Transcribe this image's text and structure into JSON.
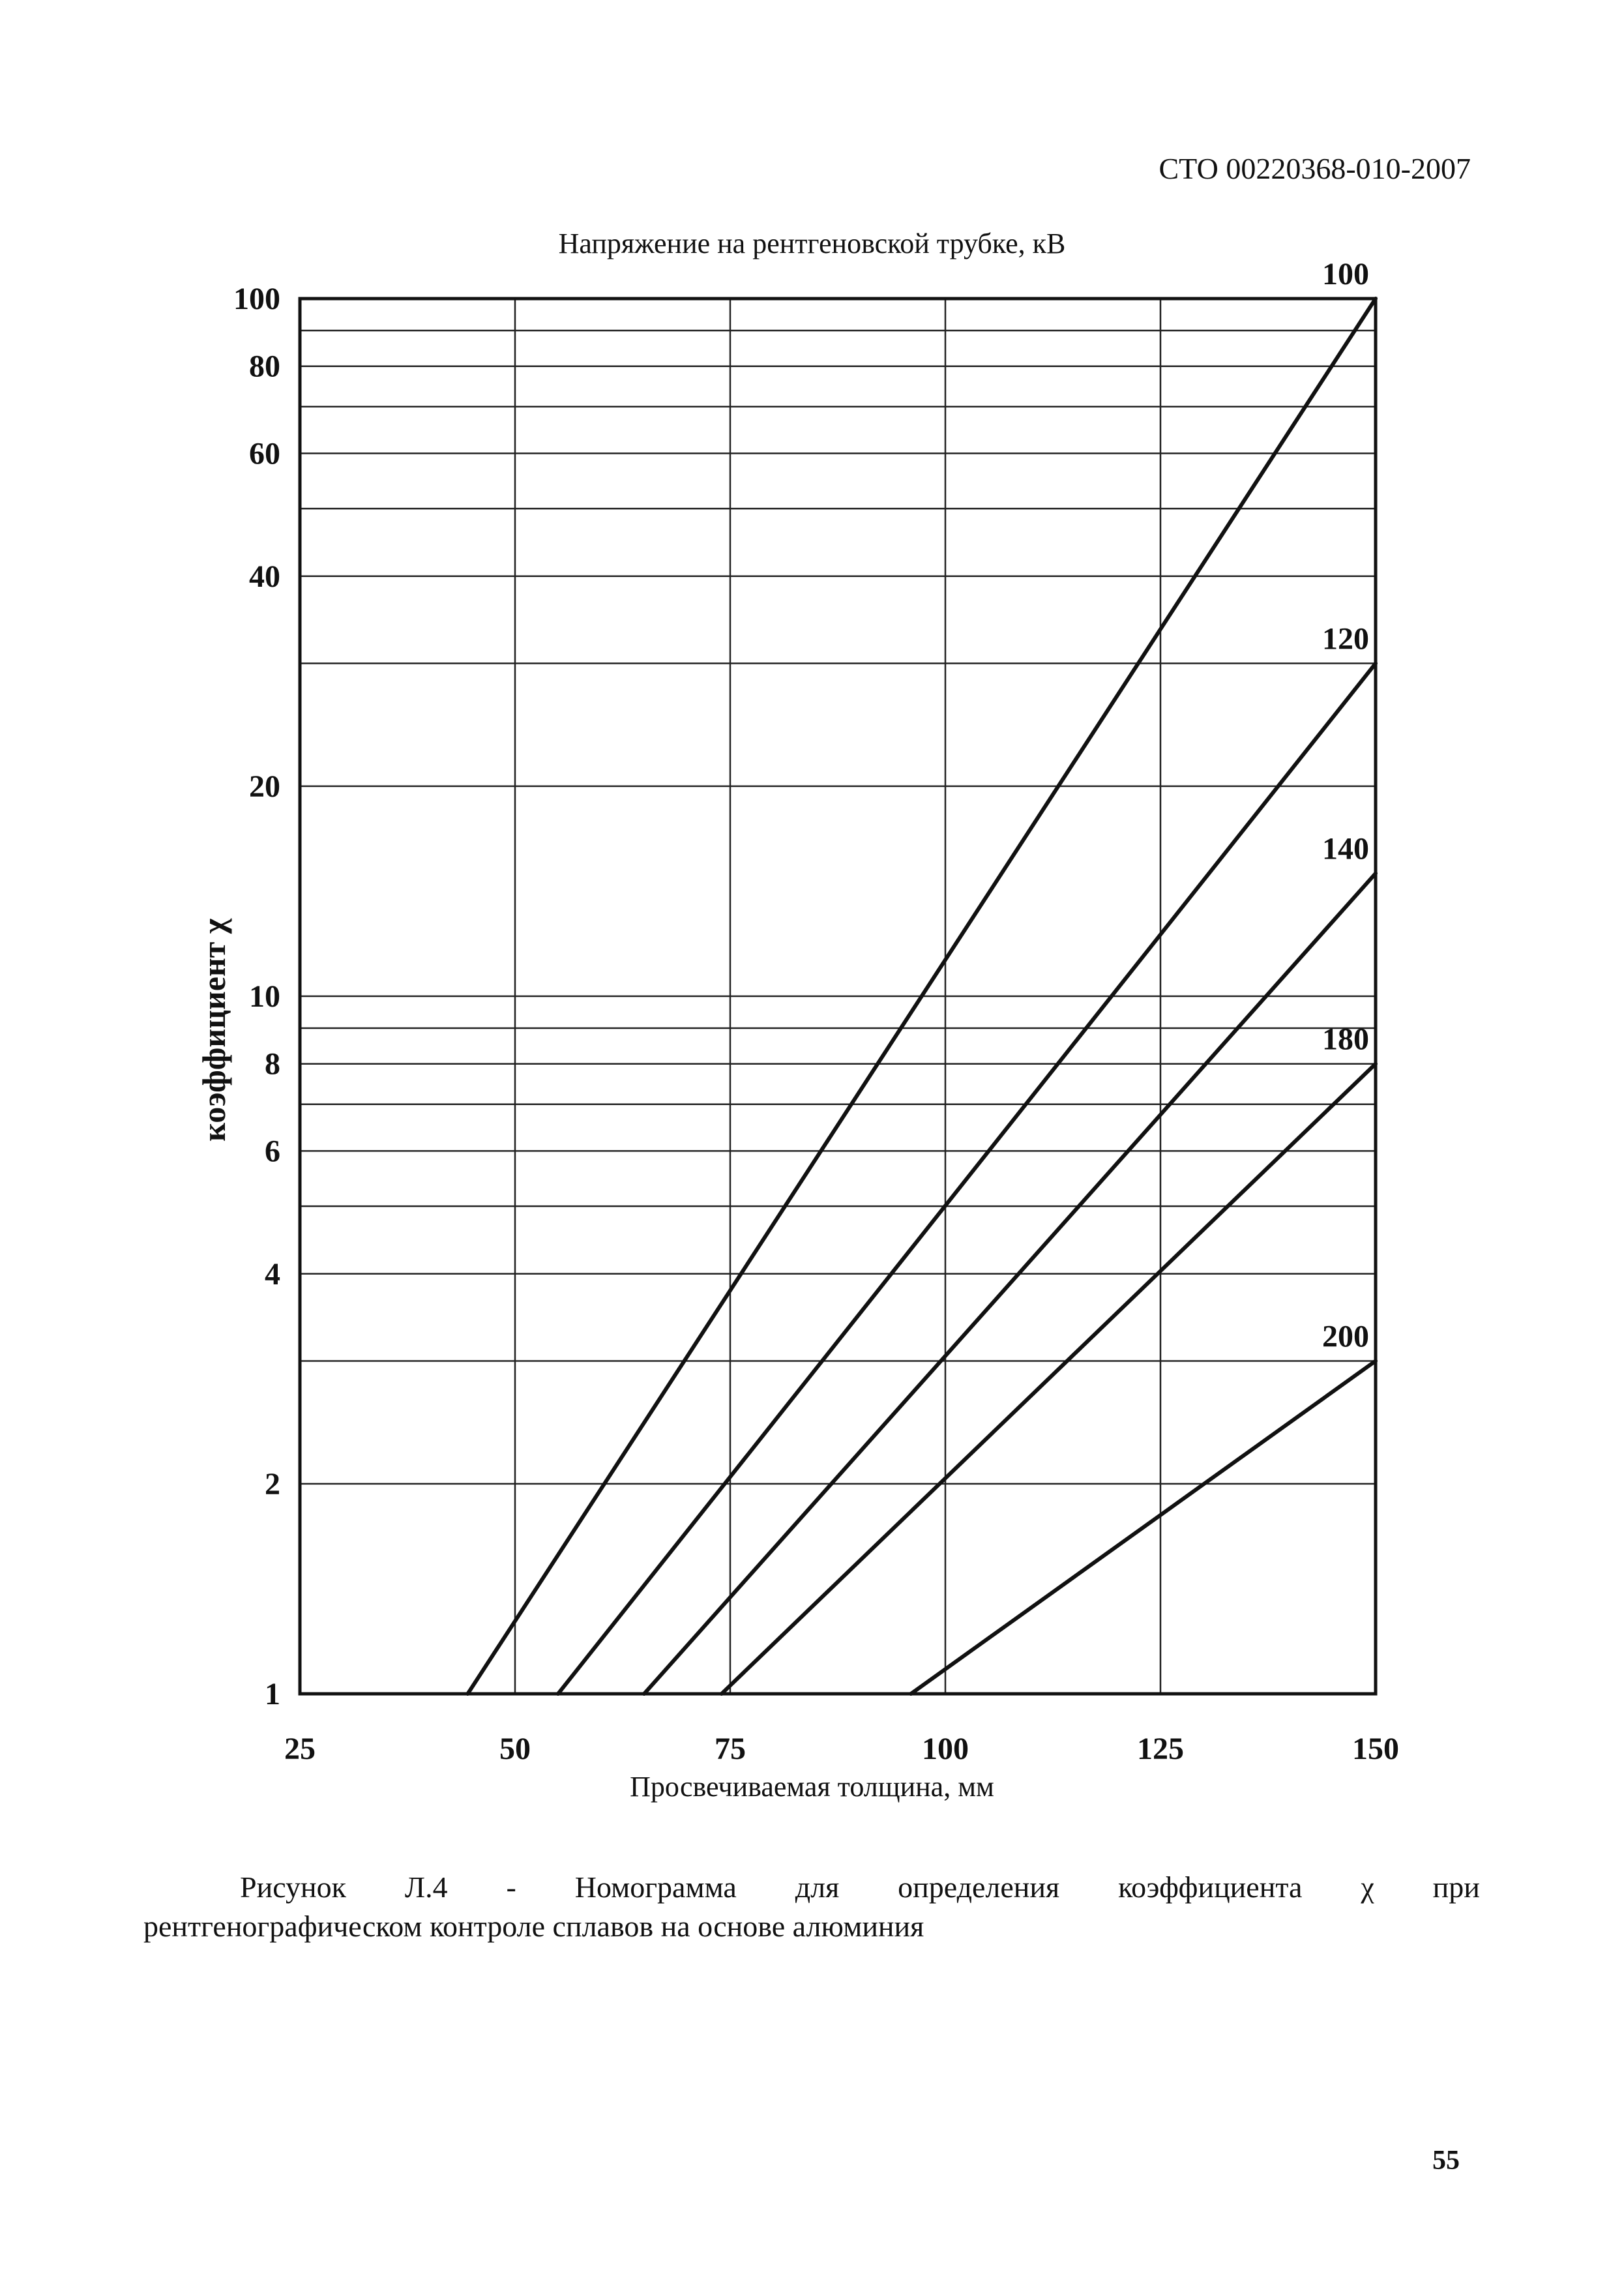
{
  "document": {
    "code": "СТО 00220368-010-2007",
    "page_number": "55",
    "caption_words": [
      "Рисунок",
      "Л.4",
      "-",
      "Номограмма",
      "для",
      "определения",
      "коэффициента",
      "χ",
      "при"
    ],
    "caption_line2": "рентгенографическом контроле сплавов на основе алюминия"
  },
  "chart_data": {
    "type": "line",
    "title": "Напряжение на рентгеновской трубке, кВ",
    "xlabel": "Просвечиваемая толщина, мм",
    "ylabel": "коэффициент χ",
    "y_scale": "log",
    "xlim": [
      25,
      150
    ],
    "ylim": [
      1,
      100
    ],
    "x_ticks": [
      25,
      50,
      75,
      100,
      125,
      150
    ],
    "y_ticks": [
      1,
      2,
      4,
      6,
      8,
      10,
      20,
      40,
      60,
      80,
      100
    ],
    "y_ticks_unlabeled": [
      3,
      5,
      7,
      9,
      30,
      50,
      70,
      90
    ],
    "grid": true,
    "series": [
      {
        "name": "100",
        "points": [
          [
            44.5,
            1
          ],
          [
            150,
            100
          ]
        ]
      },
      {
        "name": "120",
        "points": [
          [
            55,
            1
          ],
          [
            150,
            30
          ]
        ]
      },
      {
        "name": "140",
        "points": [
          [
            65,
            1
          ],
          [
            150,
            15
          ]
        ]
      },
      {
        "name": "180",
        "points": [
          [
            74,
            1
          ],
          [
            150,
            8
          ]
        ]
      },
      {
        "name": "200",
        "points": [
          [
            96,
            1
          ],
          [
            150,
            3
          ]
        ]
      }
    ]
  }
}
